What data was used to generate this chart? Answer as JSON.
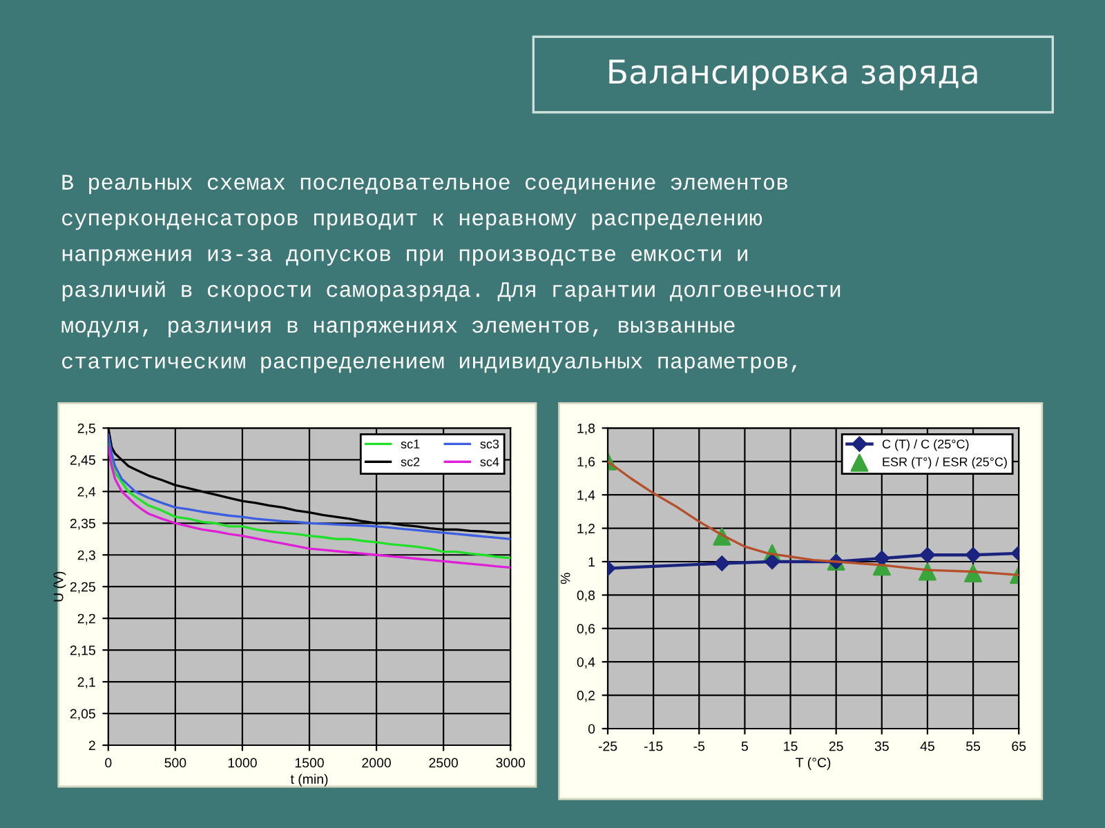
{
  "chart_data": [
    {
      "type": "other",
      "title": "Балансировка заряда",
      "annotations": [
        "В реальных схемах последовательное соединение элементов",
        "суперконденсаторов приводит к неравному распределению",
        "напряжения из-за допусков при производстве емкости и",
        "различий в скорости саморазряда. Для гарантии долговечности",
        "модуля, различия в напряжениях элементов, вызванные",
        "статистическим распределением индивидуальных параметров,"
      ]
    },
    {
      "type": "line",
      "xlabel": "t (min)",
      "ylabel": "U (V)",
      "xlim": [
        0,
        3000
      ],
      "xticks": [
        0,
        500,
        1000,
        1500,
        2000,
        2500,
        3000
      ],
      "ylim": [
        2,
        2.5
      ],
      "yticks": [
        {
          "value": 2,
          "label": "2"
        },
        {
          "value": 2.05,
          "label": "2,05"
        },
        {
          "value": 2.1,
          "label": "2,1"
        },
        {
          "value": 2.15,
          "label": "2,15"
        },
        {
          "value": 2.2,
          "label": "2,2"
        },
        {
          "value": 2.25,
          "label": "2,25"
        },
        {
          "value": 2.3,
          "label": "2,3"
        },
        {
          "value": 2.35,
          "label": "2,35"
        },
        {
          "value": 2.4,
          "label": "2,4"
        },
        {
          "value": 2.45,
          "label": "2,45"
        },
        {
          "value": 2.5,
          "label": "2,5"
        }
      ],
      "grid": true,
      "legend": "top right",
      "x": [
        0,
        25,
        50,
        100,
        150,
        200,
        250,
        300,
        400,
        500,
        600,
        700,
        800,
        900,
        1000,
        1100,
        1200,
        1300,
        1400,
        1500,
        1600,
        1700,
        1800,
        1900,
        2000,
        2100,
        2200,
        2300,
        2400,
        2500,
        2600,
        2700,
        2800,
        2900,
        3000
      ],
      "series": [
        {
          "name": "sc1",
          "color": "#22e02a",
          "values": [
            2.48,
            2.45,
            2.43,
            2.415,
            2.4,
            2.392,
            2.385,
            2.378,
            2.37,
            2.36,
            2.357,
            2.352,
            2.35,
            2.345,
            2.345,
            2.34,
            2.337,
            2.335,
            2.333,
            2.33,
            2.328,
            2.325,
            2.325,
            2.322,
            2.32,
            2.317,
            2.315,
            2.313,
            2.31,
            2.305,
            2.305,
            2.302,
            2.3,
            2.297,
            2.295
          ]
        },
        {
          "name": "sc2",
          "color": "#000000",
          "values": [
            2.5,
            2.47,
            2.46,
            2.45,
            2.44,
            2.435,
            2.43,
            2.425,
            2.418,
            2.41,
            2.405,
            2.4,
            2.395,
            2.39,
            2.385,
            2.382,
            2.378,
            2.375,
            2.37,
            2.367,
            2.363,
            2.36,
            2.357,
            2.353,
            2.35,
            2.35,
            2.347,
            2.345,
            2.342,
            2.34,
            2.34,
            2.338,
            2.337,
            2.335,
            2.335
          ]
        },
        {
          "name": "sc3",
          "color": "#3b5fe0",
          "values": [
            2.49,
            2.46,
            2.44,
            2.42,
            2.41,
            2.4,
            2.395,
            2.39,
            2.382,
            2.375,
            2.372,
            2.368,
            2.365,
            2.362,
            2.36,
            2.357,
            2.355,
            2.353,
            2.352,
            2.35,
            2.349,
            2.348,
            2.347,
            2.346,
            2.345,
            2.343,
            2.341,
            2.339,
            2.337,
            2.335,
            2.333,
            2.331,
            2.329,
            2.327,
            2.325
          ]
        },
        {
          "name": "sc4",
          "color": "#e020d8",
          "values": [
            2.47,
            2.44,
            2.42,
            2.4,
            2.39,
            2.38,
            2.372,
            2.365,
            2.357,
            2.35,
            2.345,
            2.34,
            2.337,
            2.333,
            2.33,
            2.326,
            2.322,
            2.318,
            2.314,
            2.31,
            2.308,
            2.306,
            2.304,
            2.302,
            2.3,
            2.298,
            2.296,
            2.294,
            2.292,
            2.29,
            2.288,
            2.286,
            2.284,
            2.282,
            2.28
          ]
        }
      ]
    },
    {
      "type": "line",
      "xlabel": "T (°C)",
      "ylabel": "%",
      "xlim": [
        -25,
        65
      ],
      "xticks": [
        -25,
        -15,
        -5,
        5,
        15,
        25,
        35,
        45,
        55,
        65
      ],
      "ylim": [
        0,
        1.8
      ],
      "yticks": [
        {
          "value": 0,
          "label": "0"
        },
        {
          "value": 0.2,
          "label": "0,2"
        },
        {
          "value": 0.4,
          "label": "0,4"
        },
        {
          "value": 0.6,
          "label": "0,6"
        },
        {
          "value": 0.8,
          "label": "0,8"
        },
        {
          "value": 1,
          "label": "1"
        },
        {
          "value": 1.2,
          "label": "1,2"
        },
        {
          "value": 1.4,
          "label": "1,4"
        },
        {
          "value": 1.6,
          "label": "1,6"
        },
        {
          "value": 1.8,
          "label": "1,8"
        }
      ],
      "grid": true,
      "legend": "top right",
      "series": [
        {
          "name": "C (T) / C (25°C)",
          "color": "#1a237e",
          "marker": "diamond",
          "x": [
            -25,
            0,
            11,
            25,
            35,
            45,
            55,
            65
          ],
          "values": [
            0.96,
            0.99,
            1.0,
            1.0,
            1.02,
            1.04,
            1.04,
            1.05
          ]
        },
        {
          "name": "ESR (T°) / ESR (25°C)",
          "type": "scatter",
          "color": "#3aa53a",
          "marker": "triangle",
          "x": [
            -25,
            0,
            11,
            25,
            35,
            45,
            55,
            65
          ],
          "values": [
            1.6,
            1.15,
            1.05,
            1.0,
            0.97,
            0.94,
            0.93,
            0.92
          ]
        },
        {
          "type": "line",
          "color": "#b5502a",
          "x": [
            -25,
            -20,
            -15,
            -10,
            -5,
            0,
            5,
            10,
            15,
            20,
            25,
            35,
            45,
            55,
            65
          ],
          "values": [
            1.6,
            1.5,
            1.41,
            1.33,
            1.24,
            1.16,
            1.09,
            1.05,
            1.03,
            1.01,
            1.0,
            0.98,
            0.95,
            0.94,
            0.92
          ]
        }
      ]
    }
  ]
}
